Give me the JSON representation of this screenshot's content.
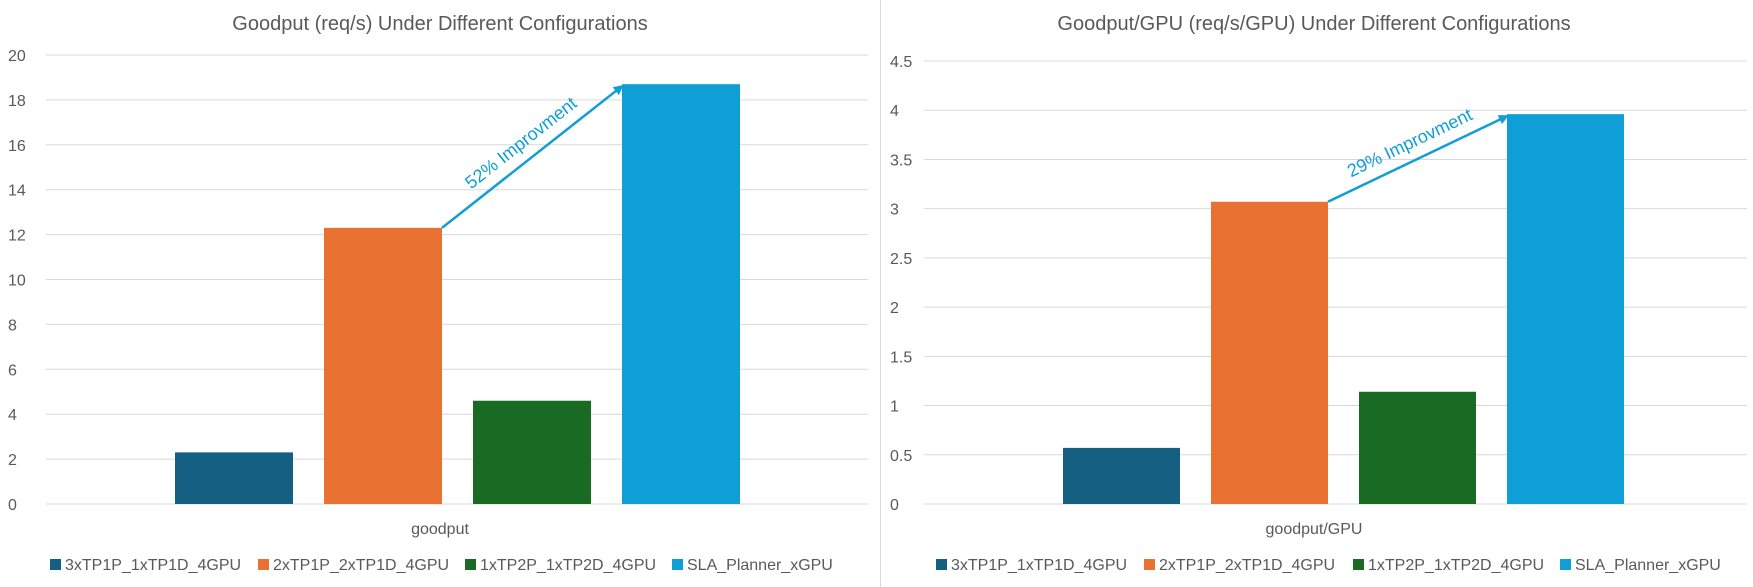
{
  "chart_data": [
    {
      "type": "bar",
      "title": "Goodput (req/s) Under Different Configurations",
      "categories": [
        "goodput"
      ],
      "series": [
        {
          "name": "3xTP1P_1xTP1D_4GPU",
          "values": [
            2.3
          ],
          "color": "#156082"
        },
        {
          "name": "2xTP1P_2xTP1D_4GPU",
          "values": [
            12.3
          ],
          "color": "#E97132"
        },
        {
          "name": "1xTP2P_1xTP2D_4GPU",
          "values": [
            4.6
          ],
          "color": "#196B24"
        },
        {
          "name": "SLA_Planner_xGPU",
          "values": [
            18.7
          ],
          "color": "#0F9ED5"
        }
      ],
      "xlabel": "",
      "ylabel": "",
      "ylim": [
        0,
        20
      ],
      "yticks": [
        "0",
        "2",
        "4",
        "6",
        "8",
        "10",
        "12",
        "14",
        "16",
        "18",
        "20"
      ],
      "grid": true,
      "legend_position": "bottom",
      "annotation": {
        "text": "52% Improvment",
        "from_series": 1,
        "to_series": 3,
        "color": "#0F9ED5"
      }
    },
    {
      "type": "bar",
      "title": "Goodput/GPU (req/s/GPU) Under Different Configurations",
      "categories": [
        "goodput/GPU"
      ],
      "series": [
        {
          "name": "3xTP1P_1xTP1D_4GPU",
          "values": [
            0.57
          ],
          "color": "#156082"
        },
        {
          "name": "2xTP1P_2xTP1D_4GPU",
          "values": [
            3.07
          ],
          "color": "#E97132"
        },
        {
          "name": "1xTP2P_1xTP2D_4GPU",
          "values": [
            1.14
          ],
          "color": "#196B24"
        },
        {
          "name": "SLA_Planner_xGPU",
          "values": [
            3.96
          ],
          "color": "#0F9ED5"
        }
      ],
      "xlabel": "",
      "ylabel": "",
      "ylim": [
        0,
        4.5
      ],
      "yticks": [
        "0",
        "0.5",
        "1",
        "1.5",
        "2",
        "2.5",
        "3",
        "3.5",
        "4",
        "4.5"
      ],
      "grid": true,
      "legend_position": "bottom",
      "annotation": {
        "text": "29% Improvment",
        "from_series": 1,
        "to_series": 3,
        "color": "#0F9ED5"
      }
    }
  ]
}
